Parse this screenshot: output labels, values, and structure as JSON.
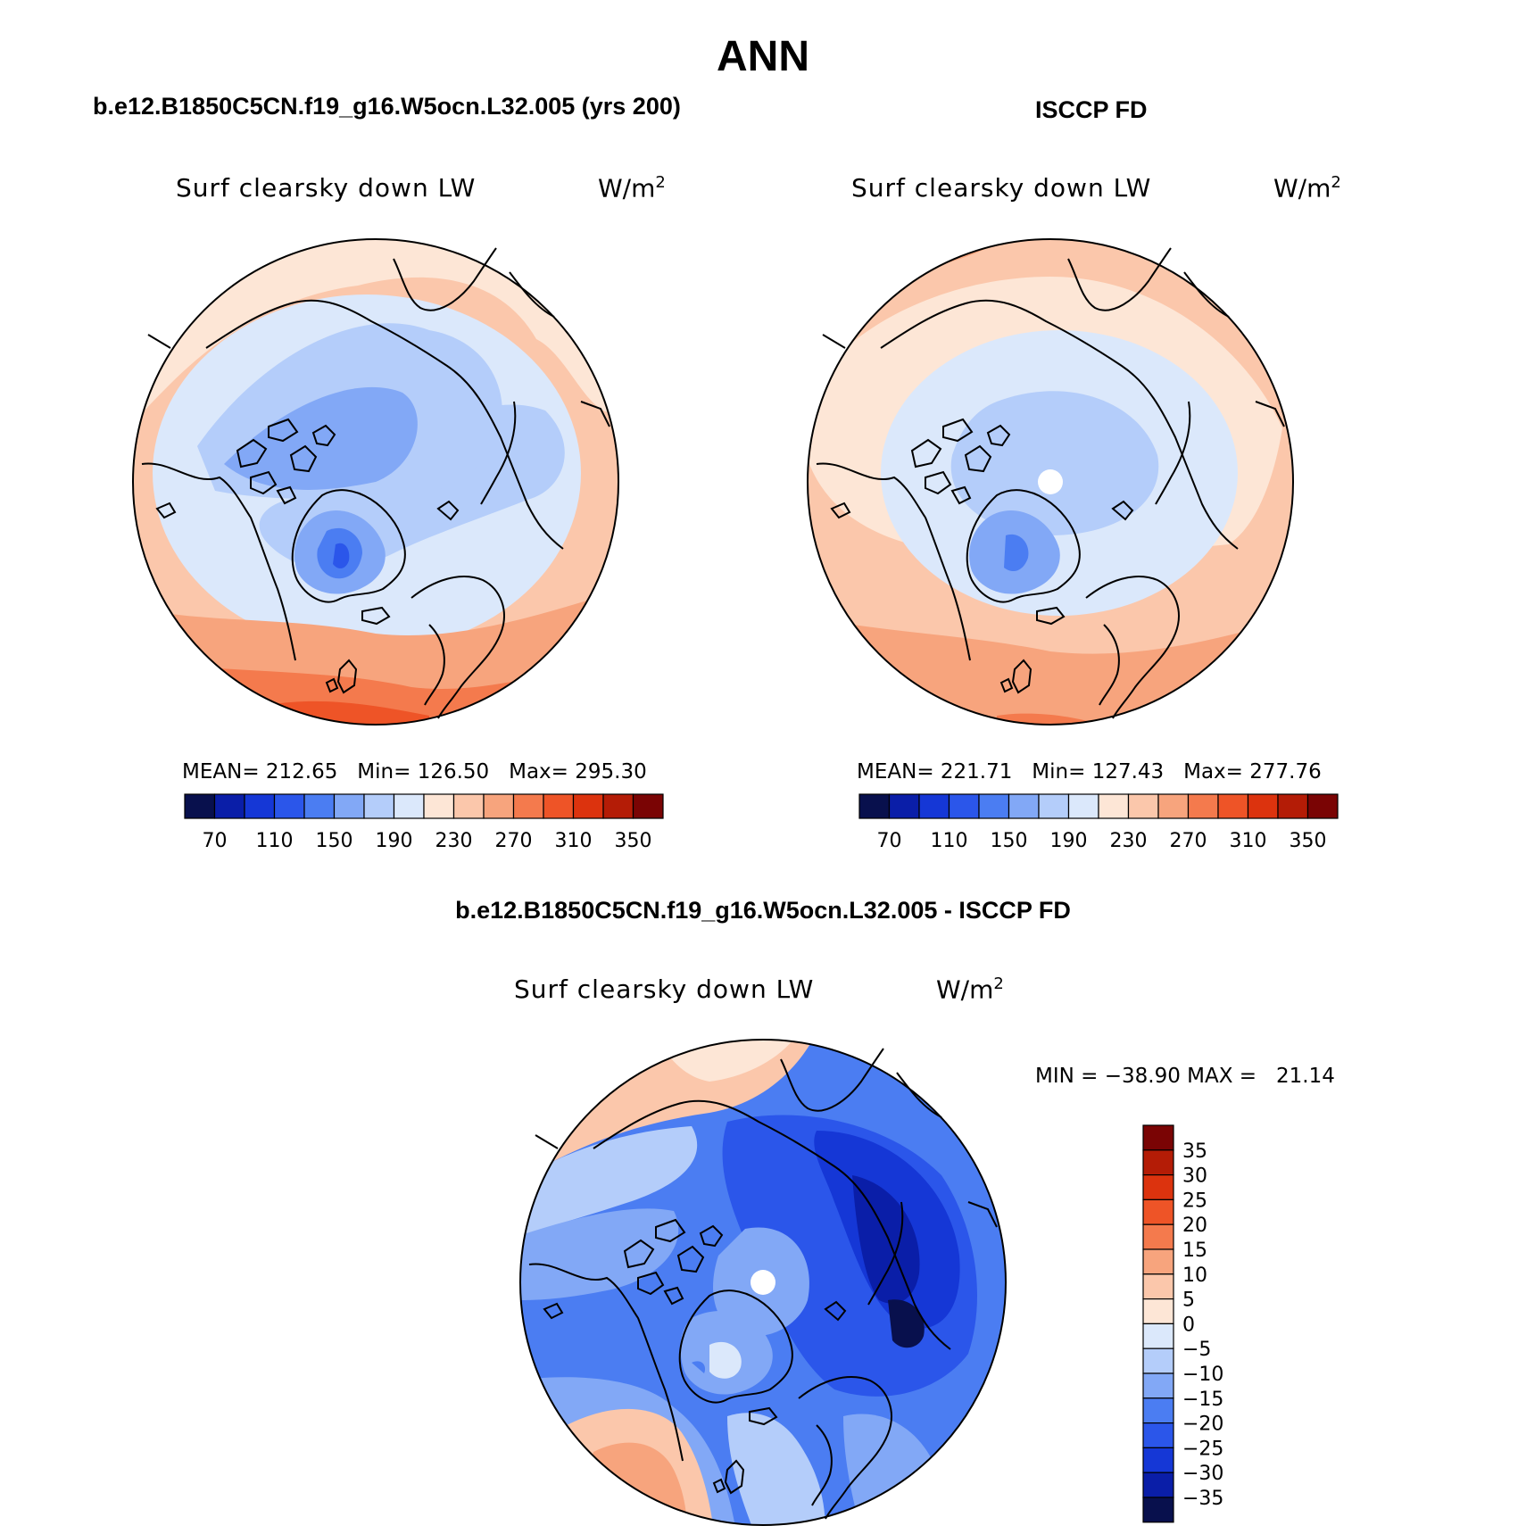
{
  "figure": {
    "title": "ANN",
    "colors": {
      "abs": [
        "#08104d",
        "#0a1ea8",
        "#1537d6",
        "#2b56ea",
        "#4b7df2",
        "#82a8f6",
        "#b4cdfa",
        "#dbe8fb",
        "#fde6d6",
        "#fbc7ab",
        "#f7a47d",
        "#f47a4d",
        "#ee5427",
        "#dc330e",
        "#b41c06",
        "#7a0404"
      ],
      "diff": [
        "#08104d",
        "#0a1ea8",
        "#1537d6",
        "#2b56ea",
        "#4b7df2",
        "#82a8f6",
        "#b4cdfa",
        "#dbe8fb",
        "#fde6d6",
        "#fbc7ab",
        "#f7a47d",
        "#f47a4d",
        "#ee5427",
        "#dc330e",
        "#b41c06",
        "#7a0404"
      ]
    }
  },
  "panels": [
    {
      "case": "b.e12.B1850C5CN.f19_g16.W5ocn.L32.005 (yrs 200)",
      "variable": "Surf clearsky down LW",
      "units": "W/m",
      "units_sup": "2",
      "stats": "MEAN= 212.65   Min= 126.50   Max= 295.30"
    },
    {
      "case": "ISCCP FD",
      "variable": "Surf clearsky down LW",
      "units": "W/m",
      "units_sup": "2",
      "stats": "MEAN= 221.71   Min= 127.43   Max= 277.76"
    },
    {
      "case": "b.e12.B1850C5CN.f19_g16.W5ocn.L32.005 - ISCCP FD",
      "variable": "Surf clearsky down LW",
      "units": "W/m",
      "units_sup": "2",
      "stats": "MIN = −38.90 MAX =   21.14"
    }
  ],
  "colorbar_abs": {
    "labels": [
      "70",
      "110",
      "150",
      "190",
      "230",
      "270",
      "310",
      "350"
    ]
  },
  "colorbar_diff": {
    "labels": [
      "35",
      "30",
      "25",
      "20",
      "15",
      "10",
      "5",
      "0",
      "−5",
      "−10",
      "−15",
      "−20",
      "−25",
      "−30",
      "−35"
    ]
  }
}
